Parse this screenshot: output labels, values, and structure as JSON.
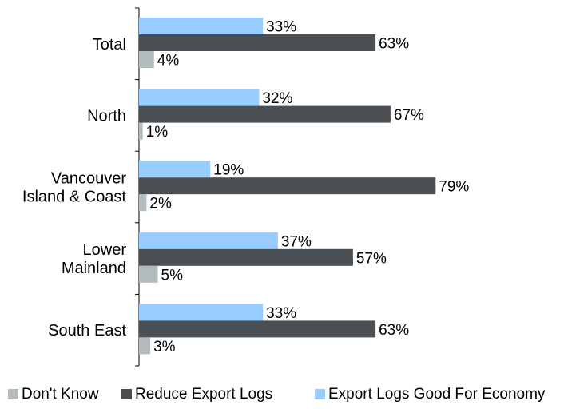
{
  "chart_data": {
    "type": "bar",
    "orientation": "horizontal",
    "categories": [
      [
        "Total"
      ],
      [
        "North"
      ],
      [
        "Vancouver",
        "Island & Coast"
      ],
      [
        "Lower",
        "Mainland"
      ],
      [
        "South East"
      ]
    ],
    "series": [
      {
        "name": "Export Logs Good For Economy",
        "color": "#99ccff",
        "values": [
          33,
          32,
          19,
          37,
          33
        ],
        "labels": [
          "33%",
          "32%",
          "19%",
          "37%",
          "33%"
        ]
      },
      {
        "name": "Reduce Export Logs",
        "color": "#4a4f54",
        "values": [
          63,
          67,
          79,
          57,
          63
        ],
        "labels": [
          "63%",
          "67%",
          "79%",
          "57%",
          "63%"
        ]
      },
      {
        "name": "Don't Know",
        "color": "#b2bcbc",
        "values": [
          4,
          1,
          2,
          5,
          3
        ],
        "labels": [
          "4%",
          "1%",
          "2%",
          "5%",
          "3%"
        ]
      }
    ],
    "legend": {
      "position": "bottom",
      "order": [
        "Don't Know",
        "Reduce Export Logs",
        "Export Logs Good For Economy"
      ]
    },
    "grid": false,
    "xlim": [
      0,
      100
    ]
  }
}
